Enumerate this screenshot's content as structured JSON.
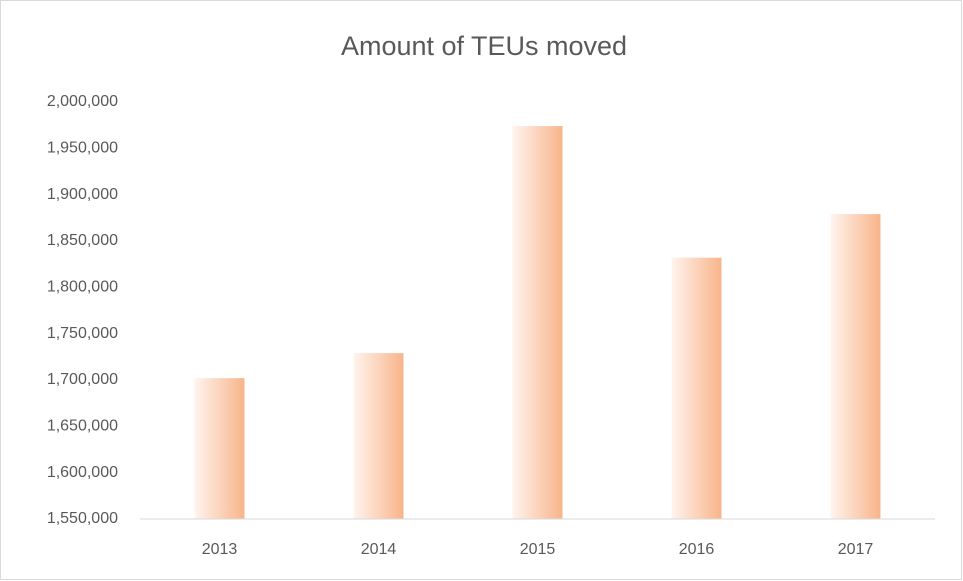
{
  "chart_data": {
    "type": "bar",
    "title": "Amount of TEUs moved",
    "categories": [
      "2013",
      "2014",
      "2015",
      "2016",
      "2017"
    ],
    "values": [
      1702000,
      1729000,
      1974000,
      1832000,
      1879000
    ],
    "color": "#f8b48a",
    "ylim": [
      1550000,
      2000000
    ],
    "yticks": [
      {
        "value": 1550000,
        "label": "1,550,000"
      },
      {
        "value": 1600000,
        "label": "1,600,000"
      },
      {
        "value": 1650000,
        "label": "1,650,000"
      },
      {
        "value": 1700000,
        "label": "1,700,000"
      },
      {
        "value": 1750000,
        "label": "1,750,000"
      },
      {
        "value": 1800000,
        "label": "1,800,000"
      },
      {
        "value": 1850000,
        "label": "1,850,000"
      },
      {
        "value": 1900000,
        "label": "1,900,000"
      },
      {
        "value": 1950000,
        "label": "1,950,000"
      },
      {
        "value": 2000000,
        "label": "2,000,000"
      }
    ],
    "grid": false
  }
}
